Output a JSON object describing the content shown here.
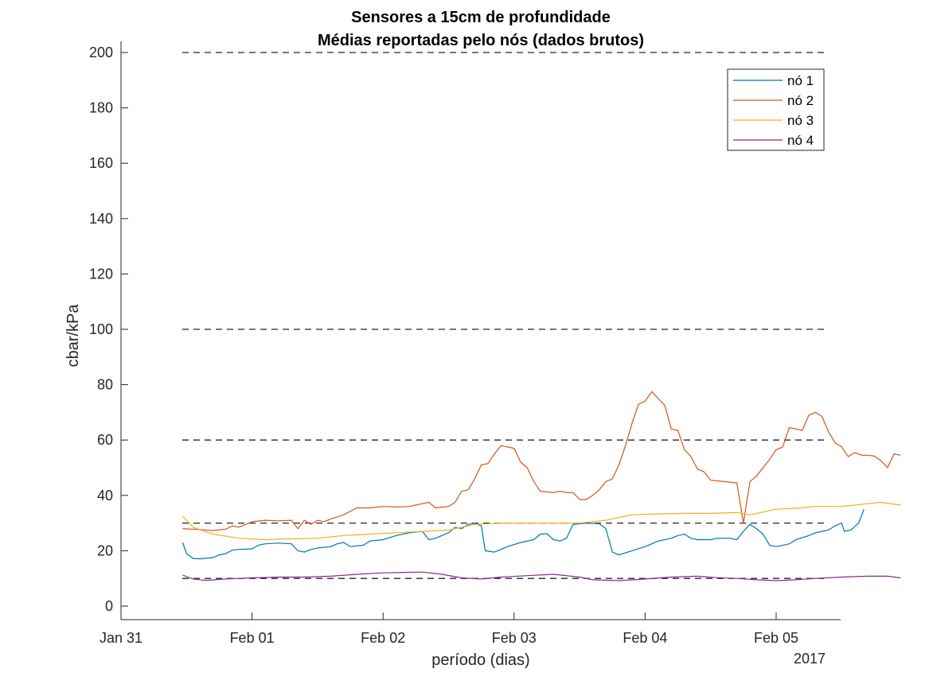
{
  "chart_data": {
    "type": "line",
    "title": "Sensores a 15cm de profundidade",
    "subtitle": "Médias reportadas pelo nós (dados brutos)",
    "xlabel": "período (dias)",
    "ylabel": "cbar/kPa",
    "x_year_label": "2017",
    "x_range": [
      -0.0,
      5.5
    ],
    "ylim": [
      -5,
      200
    ],
    "x_ticks": [
      {
        "x": 0,
        "label": "Jan 31"
      },
      {
        "x": 1,
        "label": "Feb 01"
      },
      {
        "x": 2,
        "label": "Feb 02"
      },
      {
        "x": 3,
        "label": "Feb 03"
      },
      {
        "x": 4,
        "label": "Feb 04"
      },
      {
        "x": 5,
        "label": "Feb 05"
      }
    ],
    "y_ticks": [
      0,
      20,
      40,
      60,
      80,
      100,
      120,
      140,
      160,
      180,
      200
    ],
    "reference_lines": [
      10,
      30,
      60,
      100,
      200
    ],
    "legend_position": "top-right",
    "grid": false,
    "series": [
      {
        "name": "nó 1",
        "color": "#0072BD",
        "points": [
          [
            0.47,
            23
          ],
          [
            0.5,
            19
          ],
          [
            0.55,
            17.2
          ],
          [
            0.6,
            17.1
          ],
          [
            0.7,
            17.5
          ],
          [
            0.75,
            18.5
          ],
          [
            0.8,
            19
          ],
          [
            0.85,
            20.2
          ],
          [
            0.9,
            20.5
          ],
          [
            1.0,
            20.7
          ],
          [
            1.05,
            22
          ],
          [
            1.1,
            22.5
          ],
          [
            1.2,
            22.8
          ],
          [
            1.3,
            22.5
          ],
          [
            1.35,
            20
          ],
          [
            1.4,
            19.5
          ],
          [
            1.45,
            20.5
          ],
          [
            1.5,
            21
          ],
          [
            1.6,
            21.5
          ],
          [
            1.65,
            22.5
          ],
          [
            1.7,
            23
          ],
          [
            1.75,
            21.5
          ],
          [
            1.85,
            22
          ],
          [
            1.9,
            23.5
          ],
          [
            2.0,
            24
          ],
          [
            2.1,
            25.5
          ],
          [
            2.2,
            26.5
          ],
          [
            2.3,
            27
          ],
          [
            2.35,
            24
          ],
          [
            2.4,
            24.5
          ],
          [
            2.5,
            26.5
          ],
          [
            2.55,
            28.5
          ],
          [
            2.6,
            28
          ],
          [
            2.65,
            29.5
          ],
          [
            2.7,
            30
          ],
          [
            2.75,
            29
          ],
          [
            2.78,
            20
          ],
          [
            2.85,
            19.5
          ],
          [
            2.95,
            21.5
          ],
          [
            3.05,
            23
          ],
          [
            3.15,
            24
          ],
          [
            3.2,
            26
          ],
          [
            3.25,
            26.2
          ],
          [
            3.3,
            24
          ],
          [
            3.35,
            23.5
          ],
          [
            3.4,
            24.5
          ],
          [
            3.45,
            29.5
          ],
          [
            3.55,
            30
          ],
          [
            3.65,
            29.8
          ],
          [
            3.7,
            28
          ],
          [
            3.75,
            19.5
          ],
          [
            3.8,
            18.5
          ],
          [
            3.9,
            20
          ],
          [
            4.0,
            21.5
          ],
          [
            4.1,
            23.5
          ],
          [
            4.2,
            24.5
          ],
          [
            4.25,
            25.5
          ],
          [
            4.3,
            26
          ],
          [
            4.35,
            24.5
          ],
          [
            4.4,
            24
          ],
          [
            4.5,
            24
          ],
          [
            4.55,
            24.5
          ],
          [
            4.65,
            24.5
          ],
          [
            4.7,
            24
          ],
          [
            4.75,
            27
          ],
          [
            4.8,
            29.5
          ],
          [
            4.85,
            28
          ],
          [
            4.9,
            26
          ],
          [
            4.95,
            22
          ],
          [
            5.0,
            21.5
          ],
          [
            5.1,
            22.5
          ],
          [
            5.15,
            24
          ],
          [
            5.25,
            25.5
          ],
          [
            5.3,
            26.5
          ],
          [
            5.35,
            27
          ],
          [
            5.4,
            27.5
          ],
          [
            5.45,
            29
          ],
          [
            5.5,
            30
          ],
          [
            5.52,
            27
          ],
          [
            5.57,
            27.5
          ],
          [
            5.63,
            30
          ],
          [
            5.67,
            35
          ]
        ]
      },
      {
        "name": "nó 2",
        "color": "#D95319",
        "points": [
          [
            0.47,
            28
          ],
          [
            0.55,
            27.8
          ],
          [
            0.65,
            27.5
          ],
          [
            0.7,
            27.3
          ],
          [
            0.8,
            27.8
          ],
          [
            0.85,
            29
          ],
          [
            0.9,
            28.5
          ],
          [
            0.95,
            29.5
          ],
          [
            1.0,
            30.5
          ],
          [
            1.1,
            31
          ],
          [
            1.2,
            30.8
          ],
          [
            1.3,
            31
          ],
          [
            1.35,
            28
          ],
          [
            1.4,
            31
          ],
          [
            1.45,
            29.5
          ],
          [
            1.5,
            31
          ],
          [
            1.55,
            30.5
          ],
          [
            1.6,
            31.5
          ],
          [
            1.7,
            33
          ],
          [
            1.8,
            35.5
          ],
          [
            1.9,
            35.5
          ],
          [
            2.0,
            36
          ],
          [
            2.1,
            35.8
          ],
          [
            2.2,
            36
          ],
          [
            2.3,
            37
          ],
          [
            2.35,
            37.5
          ],
          [
            2.4,
            35.5
          ],
          [
            2.5,
            36
          ],
          [
            2.55,
            37.5
          ],
          [
            2.6,
            41.5
          ],
          [
            2.65,
            42
          ],
          [
            2.7,
            46
          ],
          [
            2.75,
            51
          ],
          [
            2.8,
            51.5
          ],
          [
            2.85,
            55
          ],
          [
            2.9,
            58
          ],
          [
            2.95,
            57.5
          ],
          [
            3.0,
            57
          ],
          [
            3.05,
            52
          ],
          [
            3.1,
            50
          ],
          [
            3.15,
            45
          ],
          [
            3.2,
            41.5
          ],
          [
            3.3,
            41
          ],
          [
            3.35,
            41.5
          ],
          [
            3.4,
            41
          ],
          [
            3.45,
            41
          ],
          [
            3.5,
            38.5
          ],
          [
            3.55,
            38.5
          ],
          [
            3.6,
            40
          ],
          [
            3.65,
            42
          ],
          [
            3.7,
            45
          ],
          [
            3.75,
            46
          ],
          [
            3.8,
            51
          ],
          [
            3.85,
            58
          ],
          [
            3.9,
            66
          ],
          [
            3.95,
            73
          ],
          [
            4.0,
            74
          ],
          [
            4.05,
            77.5
          ],
          [
            4.1,
            75
          ],
          [
            4.15,
            72.5
          ],
          [
            4.2,
            64
          ],
          [
            4.25,
            63.5
          ],
          [
            4.3,
            56.5
          ],
          [
            4.35,
            54
          ],
          [
            4.4,
            49.5
          ],
          [
            4.45,
            48.5
          ],
          [
            4.5,
            45.5
          ],
          [
            4.6,
            45
          ],
          [
            4.7,
            44.5
          ],
          [
            4.75,
            30
          ],
          [
            4.8,
            45
          ],
          [
            4.85,
            47
          ],
          [
            4.9,
            50
          ],
          [
            4.95,
            53
          ],
          [
            5.0,
            56.5
          ],
          [
            5.05,
            57.5
          ],
          [
            5.1,
            64.5
          ],
          [
            5.15,
            64
          ],
          [
            5.2,
            63.5
          ],
          [
            5.25,
            69
          ],
          [
            5.3,
            70
          ],
          [
            5.35,
            68.5
          ],
          [
            5.4,
            63
          ],
          [
            5.45,
            59
          ],
          [
            5.5,
            57.5
          ],
          [
            5.55,
            54
          ],
          [
            5.6,
            55.5
          ],
          [
            5.65,
            54.5
          ],
          [
            5.7,
            54.5
          ],
          [
            5.75,
            54.2
          ],
          [
            5.8,
            52.5
          ],
          [
            5.85,
            50
          ],
          [
            5.9,
            55
          ],
          [
            5.95,
            54.5
          ]
        ]
      },
      {
        "name": "nó 3",
        "color": "#EDB120",
        "points": [
          [
            0.47,
            32.5
          ],
          [
            0.55,
            28.5
          ],
          [
            0.7,
            26
          ],
          [
            0.9,
            24.5
          ],
          [
            1.1,
            24
          ],
          [
            1.3,
            24.3
          ],
          [
            1.5,
            24.5
          ],
          [
            1.7,
            25.5
          ],
          [
            1.9,
            26
          ],
          [
            2.1,
            26.5
          ],
          [
            2.3,
            27
          ],
          [
            2.5,
            27.5
          ],
          [
            2.7,
            29.5
          ],
          [
            2.9,
            30
          ],
          [
            3.1,
            30
          ],
          [
            3.3,
            30
          ],
          [
            3.5,
            30
          ],
          [
            3.7,
            31
          ],
          [
            3.9,
            33
          ],
          [
            4.1,
            33.3
          ],
          [
            4.3,
            33.5
          ],
          [
            4.5,
            33.5
          ],
          [
            4.7,
            33.8
          ],
          [
            4.8,
            33
          ],
          [
            5.0,
            35
          ],
          [
            5.2,
            35.5
          ],
          [
            5.3,
            36
          ],
          [
            5.5,
            36
          ],
          [
            5.7,
            37
          ],
          [
            5.8,
            37.5
          ],
          [
            5.95,
            36.5
          ]
        ]
      },
      {
        "name": "nó 4",
        "color": "#7E2F8E",
        "points": [
          [
            0.47,
            11.2
          ],
          [
            0.55,
            9.8
          ],
          [
            0.65,
            9.3
          ],
          [
            0.8,
            9.8
          ],
          [
            1.0,
            10.2
          ],
          [
            1.2,
            10.5
          ],
          [
            1.4,
            10.5
          ],
          [
            1.6,
            10.8
          ],
          [
            1.8,
            11.5
          ],
          [
            2.0,
            12
          ],
          [
            2.2,
            12.2
          ],
          [
            2.3,
            12.3
          ],
          [
            2.45,
            11.5
          ],
          [
            2.6,
            10.2
          ],
          [
            2.75,
            9.8
          ],
          [
            2.9,
            10.5
          ],
          [
            3.1,
            11
          ],
          [
            3.3,
            11.5
          ],
          [
            3.5,
            10.5
          ],
          [
            3.6,
            9.5
          ],
          [
            3.8,
            9.2
          ],
          [
            4.0,
            9.8
          ],
          [
            4.2,
            10.5
          ],
          [
            4.4,
            10.8
          ],
          [
            4.55,
            10.3
          ],
          [
            4.7,
            10
          ],
          [
            4.85,
            9.5
          ],
          [
            5.0,
            9.2
          ],
          [
            5.15,
            9.5
          ],
          [
            5.3,
            10
          ],
          [
            5.5,
            10.5
          ],
          [
            5.7,
            10.8
          ],
          [
            5.85,
            10.8
          ],
          [
            5.95,
            10.2
          ]
        ]
      }
    ]
  }
}
